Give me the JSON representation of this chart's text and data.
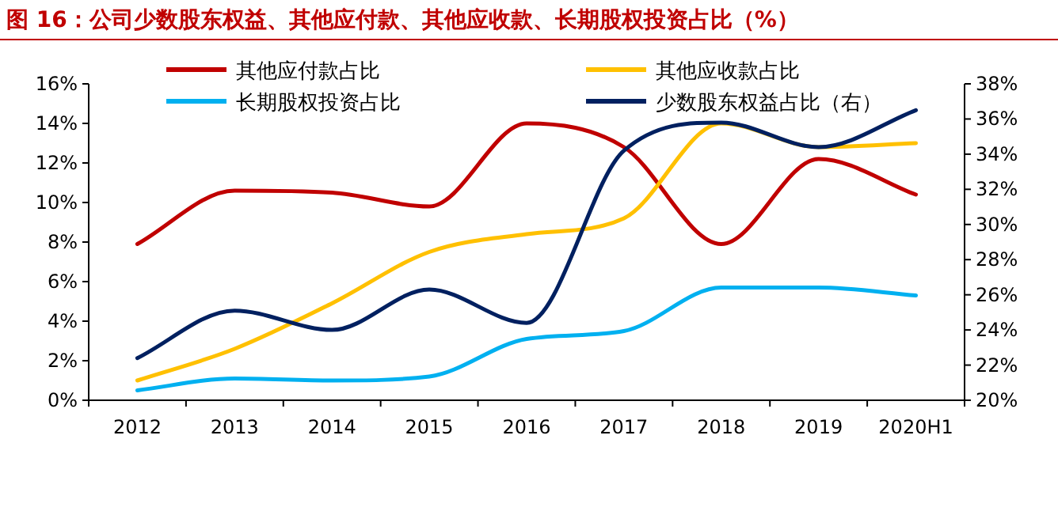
{
  "chart_data": {
    "type": "line",
    "title": "图 16：公司少数股东权益、其他应付款、其他应收款、长期股权投资占比（%）",
    "categories": [
      "2012",
      "2013",
      "2014",
      "2015",
      "2016",
      "2017",
      "2018",
      "2019",
      "2020H1"
    ],
    "series": [
      {
        "name": "其他应付款占比",
        "color": "#c00000",
        "values": [
          7.9,
          10.6,
          10.5,
          9.8,
          14.0,
          12.8,
          7.9,
          12.2,
          10.4
        ]
      },
      {
        "name": "其他应收款占比",
        "color": "#ffc000",
        "values": [
          1.0,
          2.6,
          4.9,
          7.5,
          8.4,
          9.2,
          14.0,
          12.8,
          13.0
        ]
      },
      {
        "name": "长期股权投资占比",
        "color": "#00b0f0",
        "values": [
          0.5,
          1.1,
          1.0,
          1.2,
          3.1,
          3.5,
          5.7,
          5.7,
          5.3
        ]
      },
      {
        "name": "少数股东权益占比（右）",
        "color": "#002060",
        "axis": "y2",
        "values": [
          22.4,
          25.1,
          24.0,
          26.3,
          24.4,
          34.2,
          35.8,
          34.4,
          36.5
        ]
      }
    ],
    "ylim": [
      0,
      16
    ],
    "yticks": [
      {
        "value": 0,
        "label": "0%"
      },
      {
        "value": 2,
        "label": "2%"
      },
      {
        "value": 4,
        "label": "4%"
      },
      {
        "value": 6,
        "label": "6%"
      },
      {
        "value": 8,
        "label": "8%"
      },
      {
        "value": 10,
        "label": "10%"
      },
      {
        "value": 12,
        "label": "12%"
      },
      {
        "value": 14,
        "label": "14%"
      },
      {
        "value": 16,
        "label": "16%"
      }
    ],
    "y2lim": [
      20,
      38
    ],
    "y2ticks": [
      {
        "value": 20,
        "label": "20%"
      },
      {
        "value": 22,
        "label": "22%"
      },
      {
        "value": 24,
        "label": "24%"
      },
      {
        "value": 26,
        "label": "26%"
      },
      {
        "value": 28,
        "label": "28%"
      },
      {
        "value": 30,
        "label": "30%"
      },
      {
        "value": 32,
        "label": "32%"
      },
      {
        "value": 34,
        "label": "34%"
      },
      {
        "value": 36,
        "label": "36%"
      },
      {
        "value": 38,
        "label": "38%"
      }
    ],
    "legend": "top",
    "grid": false,
    "marker": "none",
    "line_style": "solid"
  }
}
